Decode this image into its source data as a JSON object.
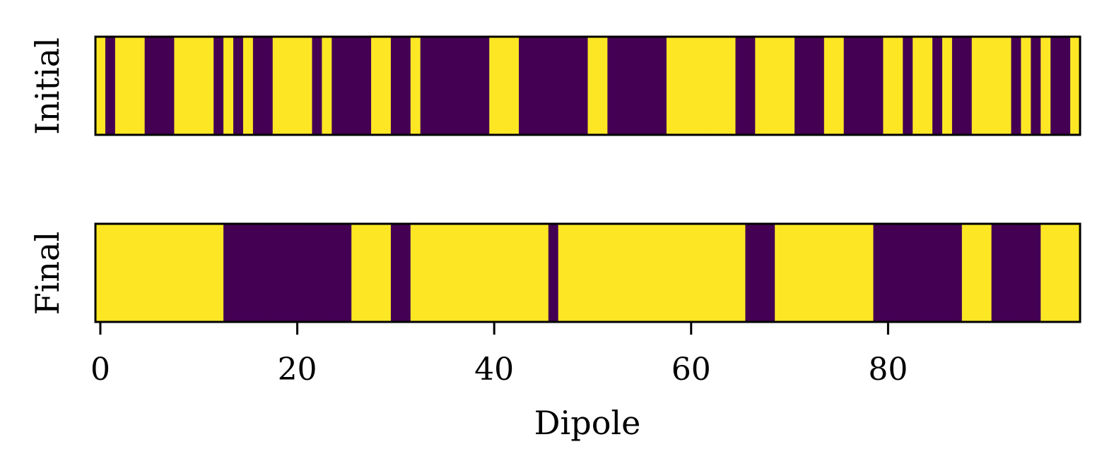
{
  "chart_data": {
    "type": "heatmap",
    "xlabel": "Dipole",
    "x_ticks": [
      0,
      20,
      40,
      60,
      80
    ],
    "xlim": [
      -0.5,
      99.5
    ],
    "colors": {
      "low": "#440154",
      "high": "#fde725",
      "frame": "#000000"
    },
    "rows": [
      {
        "label": "Initial",
        "values": [
          1,
          0,
          1,
          1,
          1,
          0,
          0,
          0,
          1,
          1,
          1,
          1,
          0,
          1,
          0,
          1,
          0,
          0,
          1,
          1,
          1,
          1,
          0,
          1,
          0,
          0,
          0,
          0,
          1,
          1,
          0,
          0,
          1,
          0,
          0,
          0,
          0,
          0,
          0,
          0,
          1,
          1,
          1,
          0,
          0,
          0,
          0,
          0,
          0,
          0,
          1,
          1,
          0,
          0,
          0,
          0,
          0,
          0,
          1,
          1,
          1,
          1,
          1,
          1,
          1,
          0,
          0,
          1,
          1,
          1,
          1,
          0,
          0,
          0,
          1,
          1,
          0,
          0,
          0,
          0,
          1,
          1,
          0,
          1,
          1,
          0,
          1,
          0,
          0,
          1,
          1,
          1,
          1,
          0,
          1,
          0,
          1,
          0,
          0,
          1
        ]
      },
      {
        "label": "Final",
        "values": [
          1,
          1,
          1,
          1,
          1,
          1,
          1,
          1,
          1,
          1,
          1,
          1,
          1,
          0,
          0,
          0,
          0,
          0,
          0,
          0,
          0,
          0,
          0,
          0,
          0,
          0,
          1,
          1,
          1,
          1,
          0,
          0,
          1,
          1,
          1,
          1,
          1,
          1,
          1,
          1,
          1,
          1,
          1,
          1,
          1,
          1,
          0,
          1,
          1,
          1,
          1,
          1,
          1,
          1,
          1,
          1,
          1,
          1,
          1,
          1,
          1,
          1,
          1,
          1,
          1,
          1,
          0,
          0,
          0,
          1,
          1,
          1,
          1,
          1,
          1,
          1,
          1,
          1,
          1,
          0,
          0,
          0,
          0,
          0,
          0,
          0,
          0,
          0,
          1,
          1,
          1,
          0,
          0,
          0,
          0,
          0,
          1,
          1,
          1,
          1
        ]
      }
    ]
  }
}
